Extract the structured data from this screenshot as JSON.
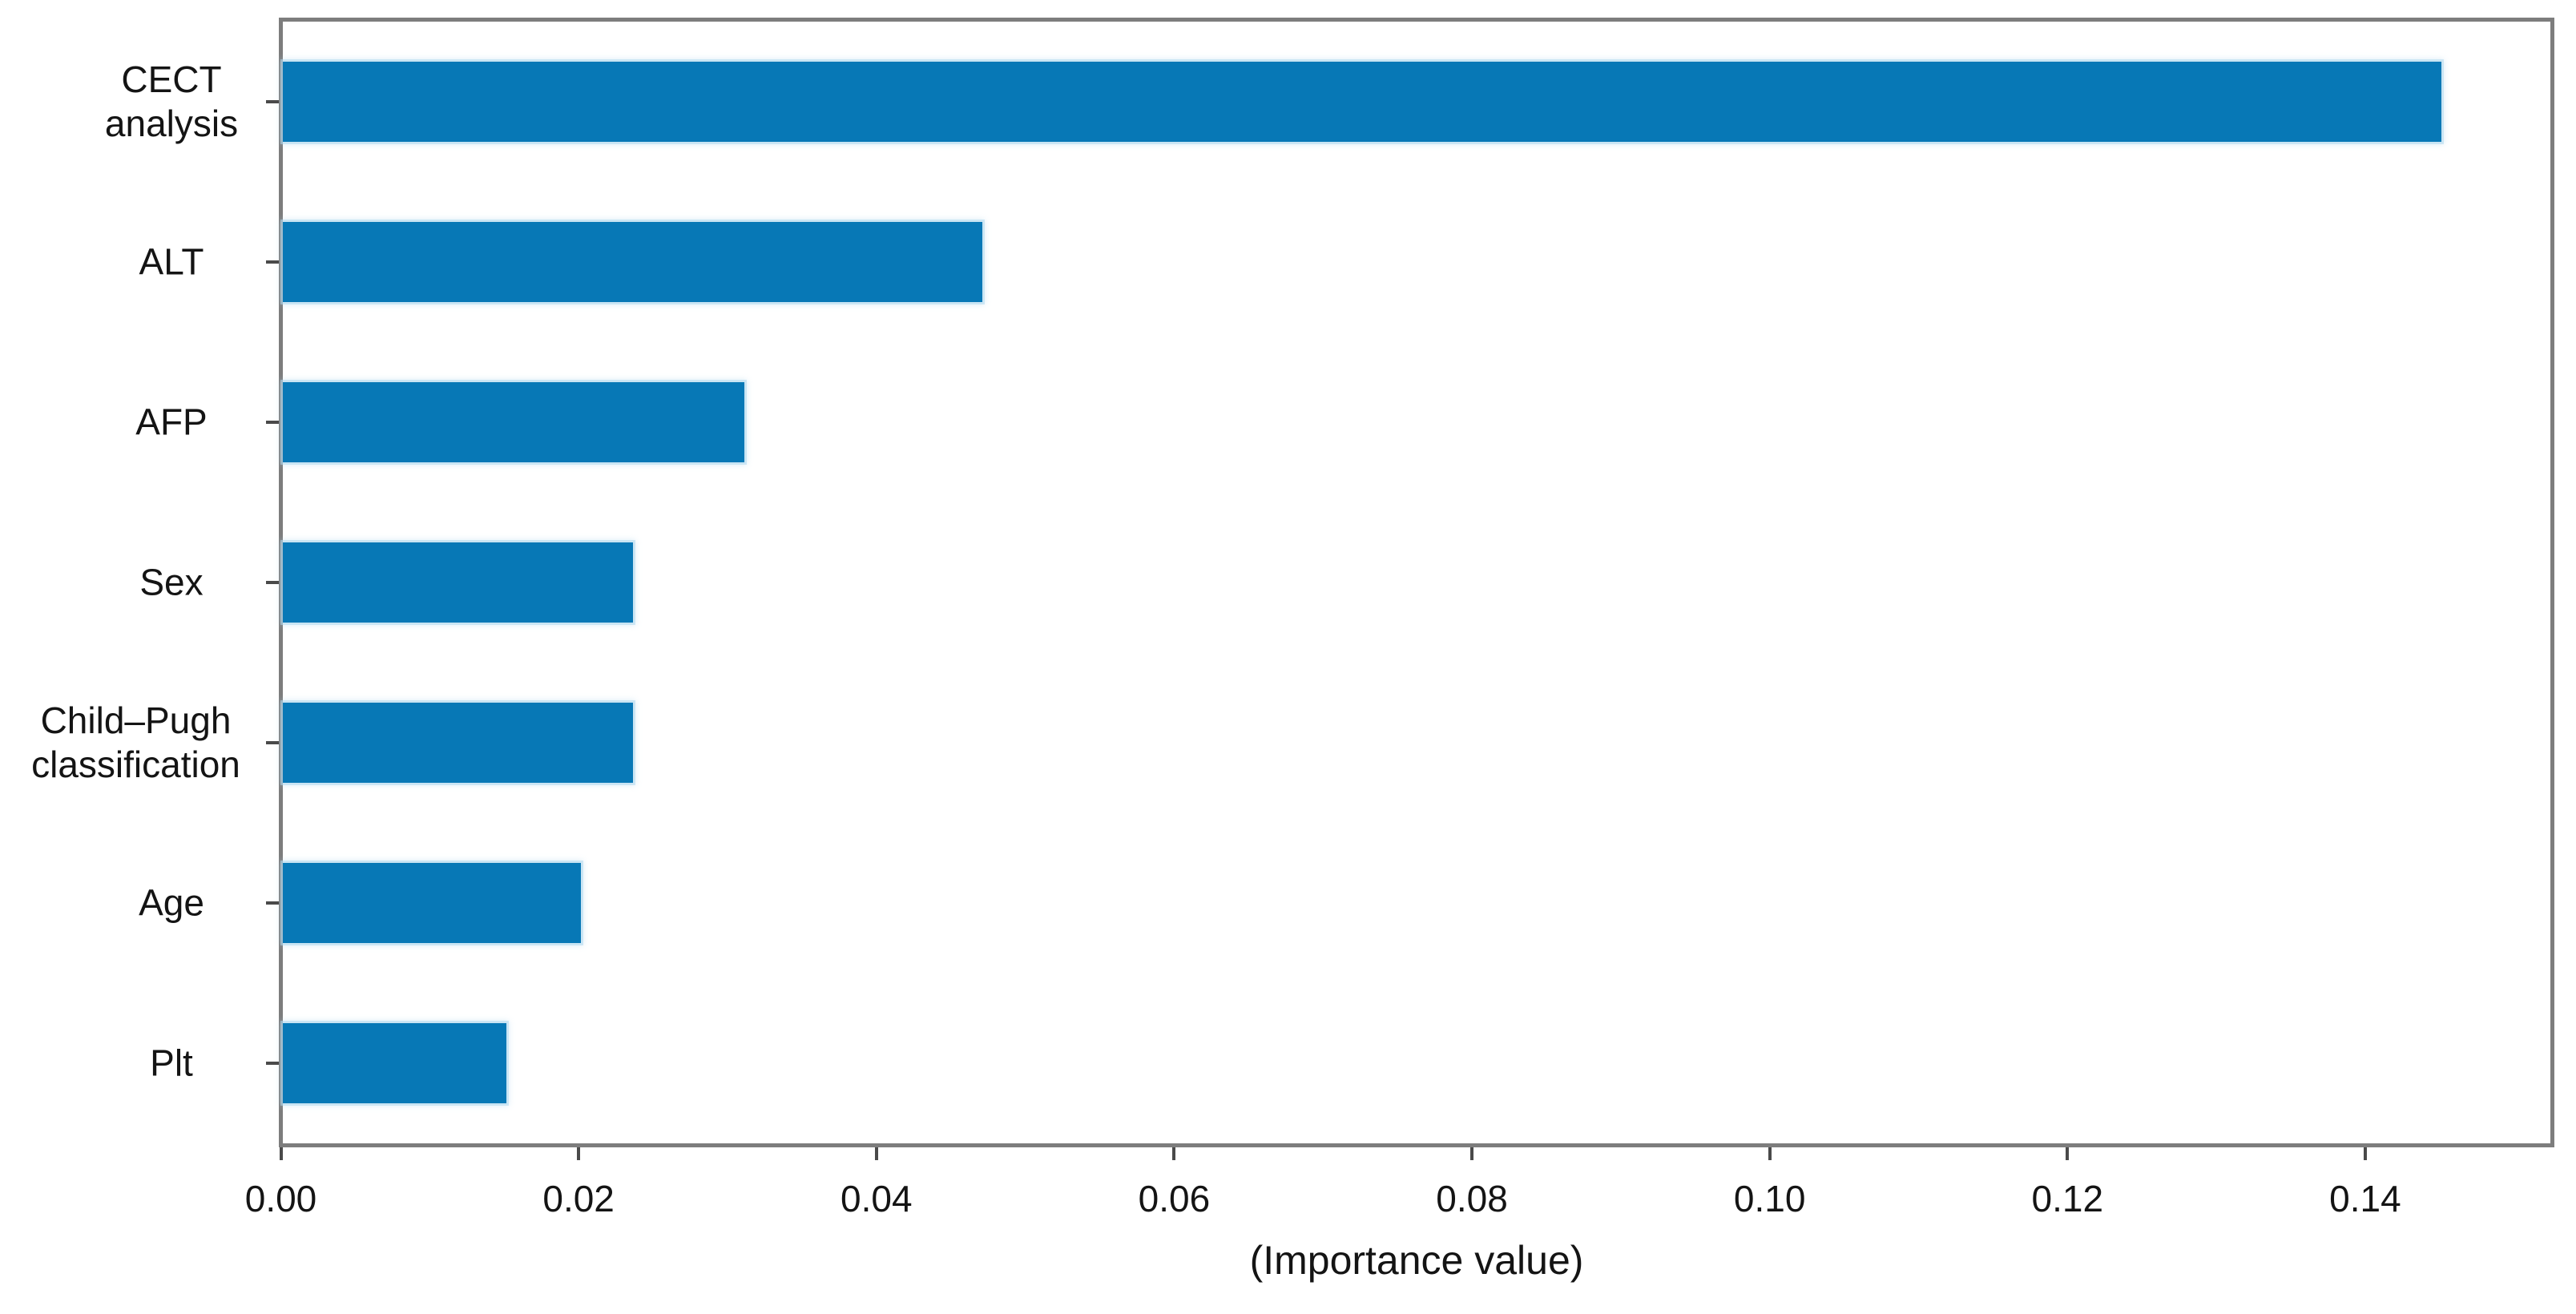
{
  "figure": {
    "background": "#ffffff"
  },
  "chart_data": {
    "type": "bar",
    "orientation": "horizontal",
    "title": "",
    "xlabel": "(Importance value)",
    "ylabel": "",
    "categories": [
      "CECT\nanalysis",
      "ALT",
      "AFP",
      "Sex",
      "Child–Pugh\nclassification",
      "Age",
      "Plt"
    ],
    "values": [
      0.145,
      0.047,
      0.031,
      0.0235,
      0.0235,
      0.02,
      0.015
    ],
    "x_ticks": [
      "0.00",
      "0.02",
      "0.04",
      "0.06",
      "0.08",
      "0.10",
      "0.12",
      "0.14"
    ],
    "x_tick_values": [
      0.0,
      0.02,
      0.04,
      0.06,
      0.08,
      0.1,
      0.12,
      0.14
    ],
    "xlim": [
      0,
      0.1523
    ],
    "grid": false,
    "legend": null,
    "bar_color": "#0778b6",
    "bar_edge_halo_color": "#b0d8ee",
    "spine_color": "#7d7d7d",
    "tick_color": "#4a4a4a",
    "text_color": "#141414"
  }
}
